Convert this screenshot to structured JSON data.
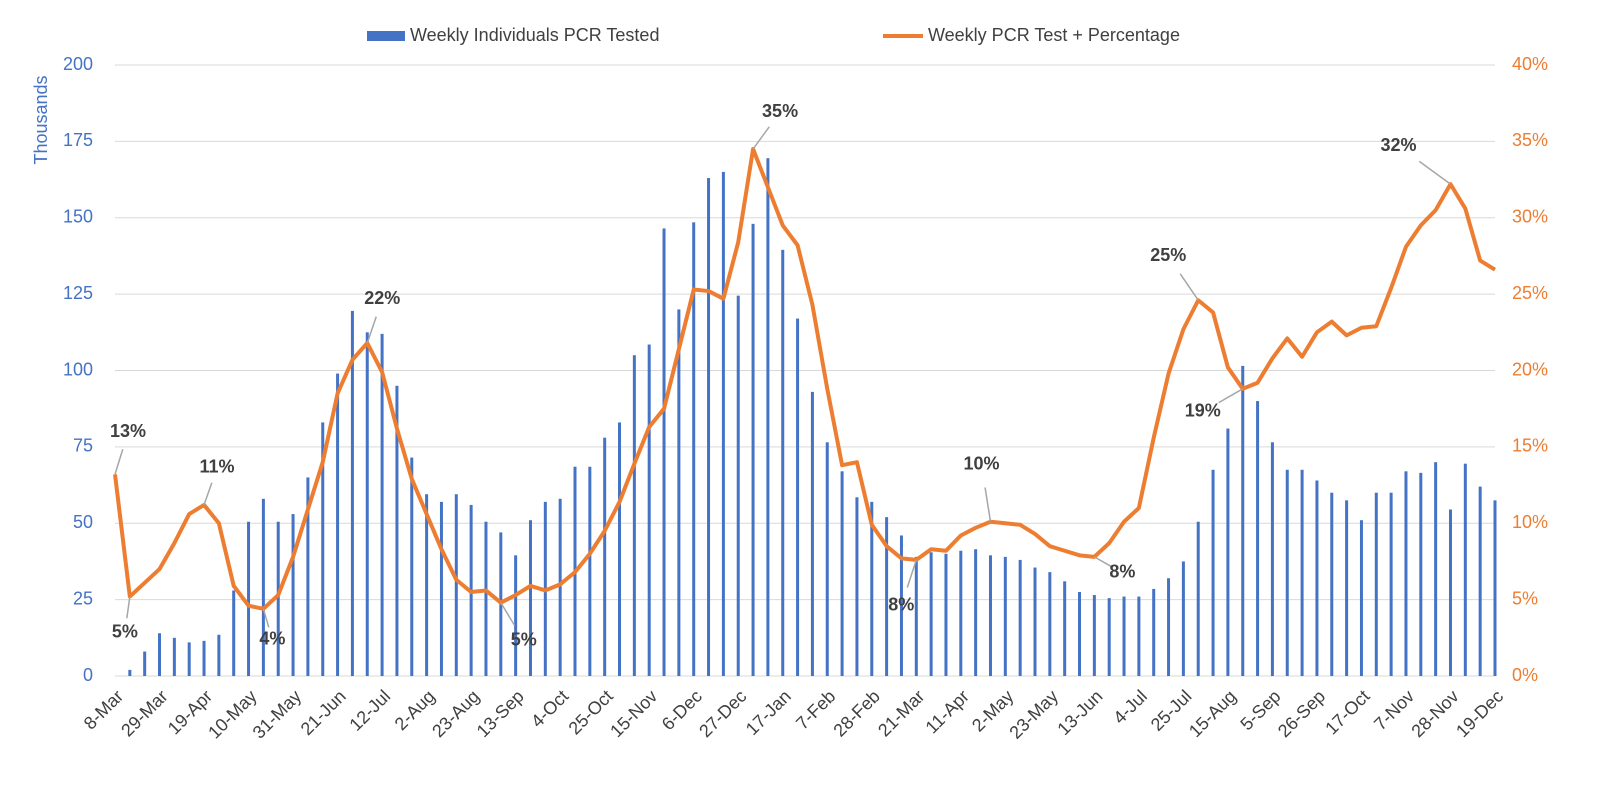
{
  "chart_data": {
    "type": "bar-line",
    "y_label": "Thousands",
    "categories": [
      "8-Mar",
      null,
      null,
      "29-Mar",
      null,
      null,
      "19-Apr",
      null,
      null,
      "10-May",
      null,
      null,
      "31-May",
      null,
      null,
      "21-Jun",
      null,
      null,
      "12-Jul",
      null,
      null,
      "2-Aug",
      null,
      null,
      "23-Aug",
      null,
      null,
      "13-Sep",
      null,
      null,
      "4-Oct",
      null,
      null,
      "25-Oct",
      null,
      null,
      "15-Nov",
      null,
      null,
      "6-Dec",
      null,
      null,
      "27-Dec",
      null,
      null,
      "17-Jan",
      null,
      null,
      "7-Feb",
      null,
      null,
      "28-Feb",
      null,
      null,
      "21-Mar",
      null,
      null,
      "11-Apr",
      null,
      null,
      "2-May",
      null,
      null,
      "23-May",
      null,
      null,
      "13-Jun",
      null,
      null,
      "4-Jul",
      null,
      null,
      "25-Jul",
      null,
      null,
      "15-Aug",
      null,
      null,
      "5-Sep",
      null,
      null,
      "26-Sep",
      null,
      null,
      "17-Oct",
      null,
      null,
      "7-Nov",
      null,
      null,
      "28-Nov",
      null,
      null,
      "19-Dec"
    ],
    "series": [
      {
        "name": "Weekly Individuals PCR Tested",
        "type": "bar",
        "color": "#4472c4",
        "values": [
          0,
          2,
          8,
          14,
          12.5,
          11,
          11.5,
          13.5,
          28,
          50.5,
          58,
          50.5,
          53,
          65,
          83,
          99,
          119.5,
          112.5,
          112,
          95,
          71.5,
          59.5,
          57,
          59.5,
          56,
          50.5,
          47,
          39.5,
          51,
          57,
          58,
          68.5,
          68.5,
          78,
          83,
          105,
          108.5,
          146.5,
          120,
          148.5,
          163,
          165,
          124.5,
          148,
          169.5,
          139.5,
          117,
          93,
          76.5,
          67,
          58.5,
          57,
          52,
          46,
          39,
          40.5,
          40,
          41,
          41.5,
          39.5,
          39,
          38,
          35.5,
          34,
          31,
          27.5,
          26.5,
          25.5,
          26,
          26,
          28.5,
          32,
          37.5,
          50.5,
          67.5,
          81,
          101.5,
          90,
          76.5,
          67.5,
          67.5,
          64,
          60,
          57.5,
          51,
          60,
          60,
          67,
          66.5,
          70,
          54.5,
          69.5,
          62,
          57.5
        ]
      },
      {
        "name": "Weekly PCR Test + Percentage",
        "type": "line",
        "axis": "y2",
        "color": "#ed7d31",
        "values": [
          13.2,
          5.2,
          6.1,
          7.0,
          8.7,
          10.6,
          11.2,
          10.0,
          5.9,
          4.6,
          4.4,
          5.3,
          7.8,
          10.9,
          14.0,
          18.5,
          20.7,
          21.8,
          19.9,
          16.2,
          12.9,
          10.6,
          8.3,
          6.3,
          5.5,
          5.6,
          4.8,
          5.3,
          5.9,
          5.6,
          6.0,
          6.8,
          8.0,
          9.5,
          11.4,
          13.9,
          16.3,
          17.5,
          21.4,
          25.3,
          25.2,
          24.7,
          28.4,
          34.5,
          32.0,
          29.5,
          28.2,
          24.3,
          18.8,
          13.8,
          14.0,
          9.9,
          8.5,
          7.7,
          7.6,
          8.3,
          8.2,
          9.2,
          9.7,
          10.1,
          10.0,
          9.9,
          9.3,
          8.5,
          8.2,
          7.9,
          7.8,
          8.7,
          10.1,
          11.0,
          15.6,
          19.8,
          22.7,
          24.6,
          23.8,
          20.2,
          18.8,
          19.2,
          20.8,
          22.1,
          20.9,
          22.5,
          23.2,
          22.3,
          22.8,
          22.9,
          25.4,
          28.1,
          29.5,
          30.5,
          32.2,
          30.6,
          27.2,
          26.6
        ],
        "value_labels": [
          "13%",
          "5%",
          null,
          null,
          null,
          null,
          "11%",
          null,
          null,
          null,
          "4%",
          null,
          null,
          null,
          null,
          null,
          null,
          "22%",
          null,
          null,
          null,
          null,
          null,
          null,
          null,
          null,
          "5%",
          null,
          null,
          null,
          null,
          null,
          null,
          null,
          null,
          null,
          null,
          null,
          null,
          null,
          null,
          null,
          null,
          "35%",
          null,
          null,
          null,
          null,
          null,
          null,
          null,
          null,
          null,
          null,
          "8%",
          null,
          null,
          null,
          null,
          "10%",
          null,
          null,
          null,
          null,
          null,
          null,
          "8%",
          null,
          null,
          null,
          null,
          null,
          null,
          "25%",
          null,
          null,
          "19%",
          null,
          null,
          null,
          null,
          null,
          null,
          null,
          null,
          null,
          null,
          null,
          null,
          null,
          "32%",
          null,
          null,
          null
        ]
      }
    ],
    "ylim": [
      0,
      200
    ],
    "yticks": [
      0,
      25,
      50,
      75,
      100,
      125,
      150,
      175,
      200
    ],
    "y2lim": [
      0,
      40
    ],
    "y2ticks": [
      {
        "value": 0,
        "label": "0%"
      },
      {
        "value": 5,
        "label": "5%"
      },
      {
        "value": 10,
        "label": "10%"
      },
      {
        "value": 15,
        "label": "15%"
      },
      {
        "value": 20,
        "label": "20%"
      },
      {
        "value": 25,
        "label": "25%"
      },
      {
        "value": 30,
        "label": "30%"
      },
      {
        "value": 35,
        "label": "35%"
      },
      {
        "value": 40,
        "label": "40%"
      }
    ],
    "grid": true,
    "legend": "top"
  }
}
